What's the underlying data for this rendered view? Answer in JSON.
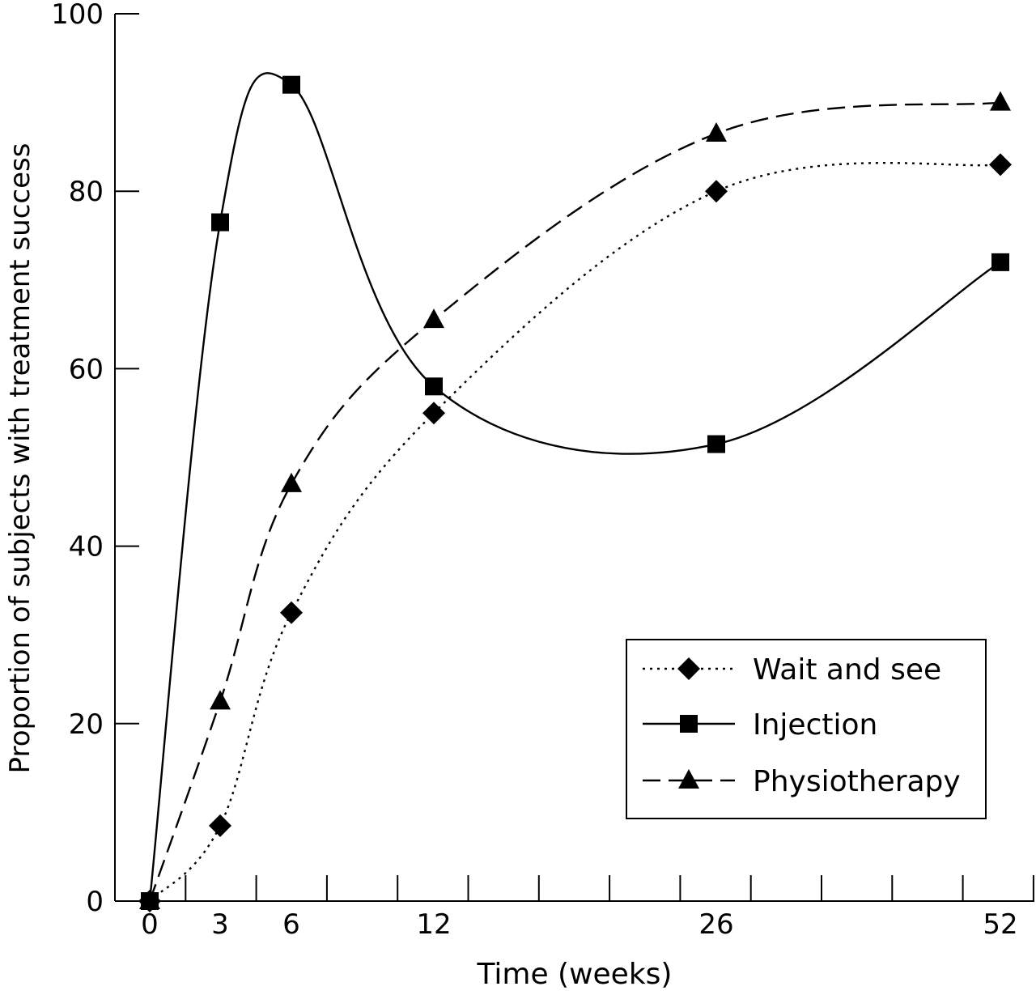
{
  "chart_data": {
    "type": "line",
    "title": "",
    "xlabel": "Time (weeks)",
    "ylabel": "Proportion of subjects with treatment success",
    "ylim": [
      0,
      100
    ],
    "y_ticks": [
      "0",
      "20",
      "40",
      "60",
      "80",
      "100"
    ],
    "x_categories": [
      "0",
      "3",
      "6",
      "12",
      "26",
      "52"
    ],
    "grid": false,
    "legend_position": "bottom-right",
    "series": [
      {
        "name": "Wait and see",
        "marker": "diamond",
        "line_style": "dotted",
        "values": [
          0,
          8.5,
          32.5,
          55,
          80,
          83
        ]
      },
      {
        "name": "Injection",
        "marker": "square",
        "line_style": "solid",
        "values": [
          0,
          76.5,
          92,
          58,
          51.5,
          72
        ]
      },
      {
        "name": "Physiotherapy",
        "marker": "triangle",
        "line_style": "dashed",
        "values": [
          0,
          22.5,
          47,
          65.5,
          86.5,
          90
        ]
      }
    ]
  }
}
